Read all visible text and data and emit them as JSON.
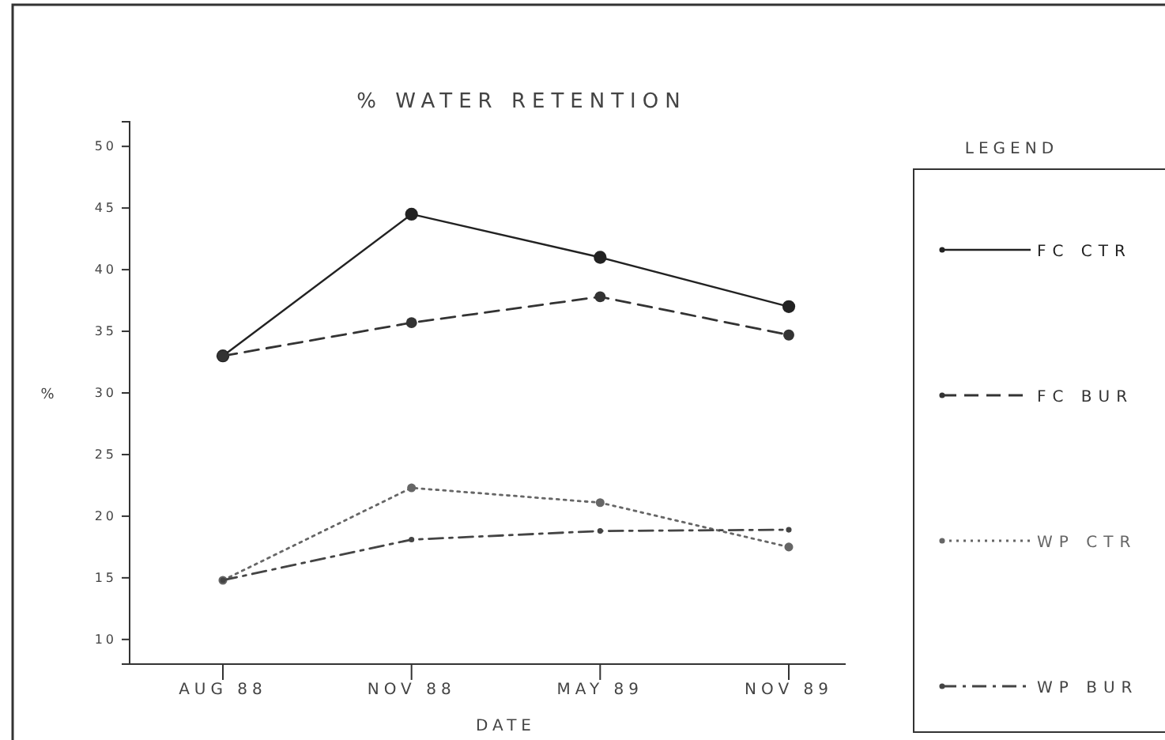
{
  "chart_data": {
    "type": "line",
    "title": "% WATER RETENTION",
    "xlabel": "DATE",
    "ylabel": "%",
    "legend_title": "LEGEND",
    "categories": [
      "AUG 88",
      "NOV 88",
      "MAY 89",
      "NOV 89"
    ],
    "series": [
      {
        "name": "FC CTR",
        "color": "#222222",
        "line_style": "solid",
        "values": [
          33.0,
          44.5,
          41.0,
          37.0
        ]
      },
      {
        "name": "FC BUR",
        "color": "#333333",
        "line_style": "dashed",
        "values": [
          33.0,
          35.7,
          37.8,
          34.7
        ]
      },
      {
        "name": "WP CTR",
        "color": "#666666",
        "line_style": "dotted",
        "values": [
          14.8,
          22.3,
          21.1,
          17.5
        ]
      },
      {
        "name": "WP BUR",
        "color": "#444444",
        "line_style": "dashdot",
        "values": [
          14.8,
          18.1,
          18.8,
          18.9
        ]
      }
    ],
    "ylim": [
      8,
      52
    ],
    "yticks": [
      10,
      15,
      20,
      25,
      30,
      35,
      40,
      45,
      50
    ],
    "marker": "circle",
    "legend": "right",
    "grid": false
  }
}
